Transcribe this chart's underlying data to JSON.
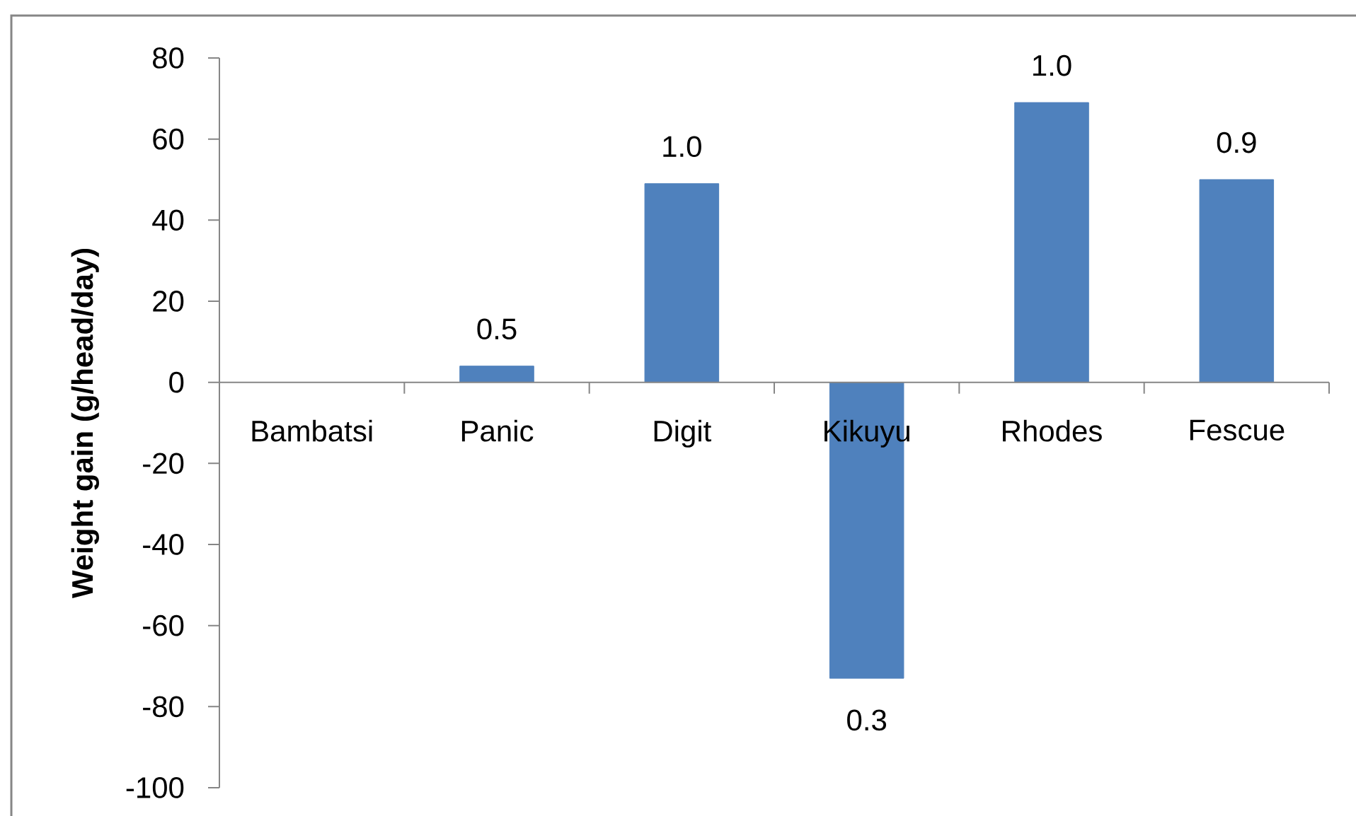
{
  "chart_data": {
    "type": "bar",
    "ylabel": "Weight gain (g/head/day)",
    "categories": [
      "Bambatsi",
      "Panic",
      "Digit",
      "Kikuyu",
      "Rhodes",
      "Fescue"
    ],
    "values": [
      null,
      4,
      49,
      -73,
      69,
      50
    ],
    "color": "#4f81bd",
    "annotations": [
      {
        "text": "0.5",
        "x": "Panic",
        "y": 4
      },
      {
        "text": "1.0",
        "x": "Digit",
        "y": 49
      },
      {
        "text": "0.3",
        "x": "Kikuyu",
        "y": -73
      },
      {
        "text": "1.0",
        "x": "Rhodes",
        "y": 69
      },
      {
        "text": "0.9",
        "x": "Fescue",
        "y": 50
      }
    ],
    "ylim": [
      -100,
      80
    ],
    "yticks": [
      -100,
      -80,
      -60,
      -40,
      -20,
      0,
      20,
      40,
      60,
      80
    ]
  }
}
